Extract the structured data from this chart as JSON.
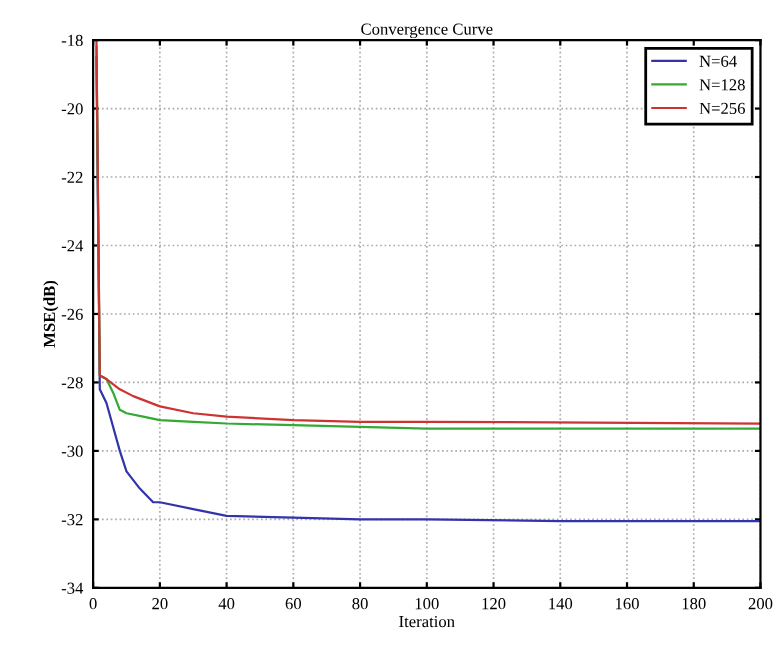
{
  "chart_data": {
    "type": "line",
    "title": "Convergence Curve",
    "xlabel": "Iteration",
    "ylabel": "MSE(dB)",
    "xlim": [
      0,
      200
    ],
    "ylim": [
      -34,
      -18
    ],
    "xticks": [
      0,
      20,
      40,
      60,
      80,
      100,
      120,
      140,
      160,
      180,
      200
    ],
    "yticks": [
      -34,
      -32,
      -30,
      -28,
      -26,
      -24,
      -22,
      -20,
      -18
    ],
    "grid": true,
    "legend": "top right",
    "series": [
      {
        "name": "N=64",
        "color": "#3333aa",
        "x": [
          1,
          2,
          4,
          6,
          8,
          10,
          14,
          18,
          20,
          30,
          40,
          60,
          80,
          100,
          140,
          200
        ],
        "values": [
          -18.5,
          -28.2,
          -28.6,
          -29.3,
          -30.0,
          -30.6,
          -31.1,
          -31.5,
          -31.5,
          -31.7,
          -31.9,
          -31.95,
          -32.0,
          -32.0,
          -32.05,
          -32.05
        ]
      },
      {
        "name": "N=128",
        "color": "#33aa33",
        "x": [
          1,
          2,
          4,
          6,
          8,
          10,
          15,
          20,
          30,
          40,
          60,
          80,
          100,
          200
        ],
        "values": [
          -18.2,
          -27.8,
          -27.9,
          -28.3,
          -28.8,
          -28.9,
          -29.0,
          -29.1,
          -29.15,
          -29.2,
          -29.25,
          -29.3,
          -29.35,
          -29.35
        ]
      },
      {
        "name": "N=256",
        "color": "#cc3333",
        "x": [
          1,
          2,
          4,
          8,
          12,
          20,
          30,
          40,
          60,
          80,
          100,
          200
        ],
        "values": [
          -18.0,
          -27.8,
          -27.9,
          -28.2,
          -28.4,
          -28.7,
          -28.9,
          -29.0,
          -29.1,
          -29.15,
          -29.15,
          -29.2
        ]
      }
    ]
  }
}
